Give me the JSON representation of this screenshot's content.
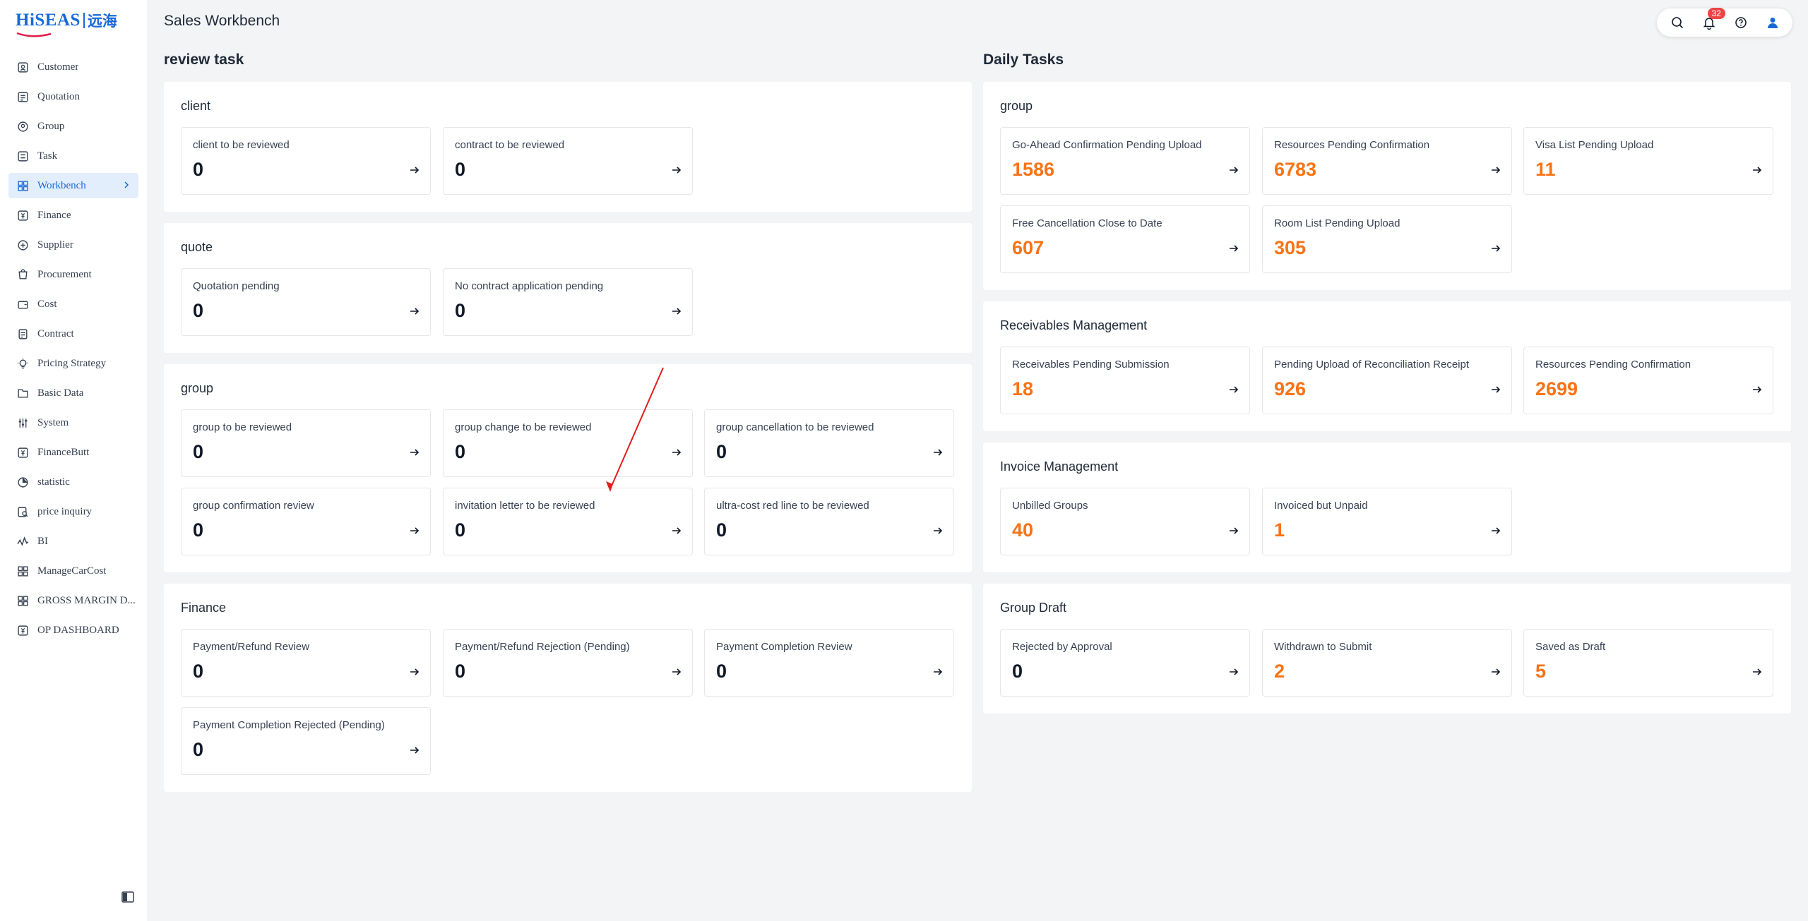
{
  "app": {
    "logo_text": "HiSEAS",
    "logo_cn": "远海",
    "page_title": "Sales Workbench"
  },
  "sidebar": {
    "items": [
      {
        "label": "Customer",
        "icon": "customer-icon"
      },
      {
        "label": "Quotation",
        "icon": "quotation-icon"
      },
      {
        "label": "Group",
        "icon": "group-icon"
      },
      {
        "label": "Task",
        "icon": "task-icon"
      },
      {
        "label": "Workbench",
        "icon": "workbench-icon",
        "active": true
      },
      {
        "label": "Finance",
        "icon": "finance-icon"
      },
      {
        "label": "Supplier",
        "icon": "supplier-icon"
      },
      {
        "label": "Procurement",
        "icon": "procurement-icon"
      },
      {
        "label": "Cost",
        "icon": "cost-icon"
      },
      {
        "label": "Contract",
        "icon": "contract-icon"
      },
      {
        "label": "Pricing Strategy",
        "icon": "pricing-icon"
      },
      {
        "label": "Basic Data",
        "icon": "basic-data-icon"
      },
      {
        "label": "System",
        "icon": "system-icon"
      },
      {
        "label": "FinanceButt",
        "icon": "finance-butt-icon"
      },
      {
        "label": "statistic",
        "icon": "statistic-icon"
      },
      {
        "label": "price inquiry",
        "icon": "price-inquiry-icon"
      },
      {
        "label": "BI",
        "icon": "bi-icon"
      },
      {
        "label": "ManageCarCost",
        "icon": "car-cost-icon"
      },
      {
        "label": "GROSS MARGIN D...",
        "icon": "gross-margin-icon"
      },
      {
        "label": "OP DASHBOARD",
        "icon": "op-dashboard-icon"
      }
    ]
  },
  "topbar": {
    "notifications_count": "32"
  },
  "review": {
    "title": "review task",
    "client": {
      "title": "client",
      "tiles": [
        {
          "label": "client to be reviewed",
          "value": "0"
        },
        {
          "label": "contract to be reviewed",
          "value": "0"
        }
      ]
    },
    "quote": {
      "title": "quote",
      "tiles": [
        {
          "label": "Quotation pending",
          "value": "0"
        },
        {
          "label": "No contract application pending",
          "value": "0"
        }
      ]
    },
    "group": {
      "title": "group",
      "tiles": [
        {
          "label": "group to be reviewed",
          "value": "0"
        },
        {
          "label": "group change to be reviewed",
          "value": "0"
        },
        {
          "label": "group cancellation to be reviewed",
          "value": "0"
        },
        {
          "label": "group confirmation review",
          "value": "0"
        },
        {
          "label": "invitation letter to be reviewed",
          "value": "0"
        },
        {
          "label": "ultra-cost red line to be reviewed",
          "value": "0"
        }
      ]
    },
    "finance": {
      "title": "Finance",
      "tiles": [
        {
          "label": "Payment/Refund Review",
          "value": "0"
        },
        {
          "label": "Payment/Refund Rejection (Pending)",
          "value": "0"
        },
        {
          "label": "Payment Completion Review",
          "value": "0"
        },
        {
          "label": "Payment Completion Rejected (Pending)",
          "value": "0"
        }
      ]
    }
  },
  "daily": {
    "title": "Daily Tasks",
    "group": {
      "title": "group",
      "tiles": [
        {
          "label": "Go-Ahead Confirmation Pending Upload",
          "value": "1586"
        },
        {
          "label": "Resources Pending Confirmation",
          "value": "6783"
        },
        {
          "label": "Visa List Pending Upload",
          "value": "11"
        },
        {
          "label": "Free Cancellation Close to Date",
          "value": "607"
        },
        {
          "label": "Room List Pending Upload",
          "value": "305"
        }
      ]
    },
    "receivables": {
      "title": "Receivables Management",
      "tiles": [
        {
          "label": "Receivables Pending Submission",
          "value": "18"
        },
        {
          "label": "Pending Upload of Reconciliation Receipt",
          "value": "926"
        },
        {
          "label": "Resources Pending Confirmation",
          "value": "2699"
        }
      ]
    },
    "invoice": {
      "title": "Invoice Management",
      "tiles": [
        {
          "label": "Unbilled Groups",
          "value": "40"
        },
        {
          "label": "Invoiced but Unpaid",
          "value": "1"
        }
      ]
    },
    "draft": {
      "title": "Group Draft",
      "tiles": [
        {
          "label": "Rejected by Approval",
          "value": "0"
        },
        {
          "label": "Withdrawn to Submit",
          "value": "2"
        },
        {
          "label": "Saved as Draft",
          "value": "5"
        }
      ]
    }
  },
  "colors": {
    "accent": "#1769d8",
    "value_orange": "#f97316",
    "badge_red": "#ef4444",
    "annotation_arrow": "#e11d1d"
  }
}
